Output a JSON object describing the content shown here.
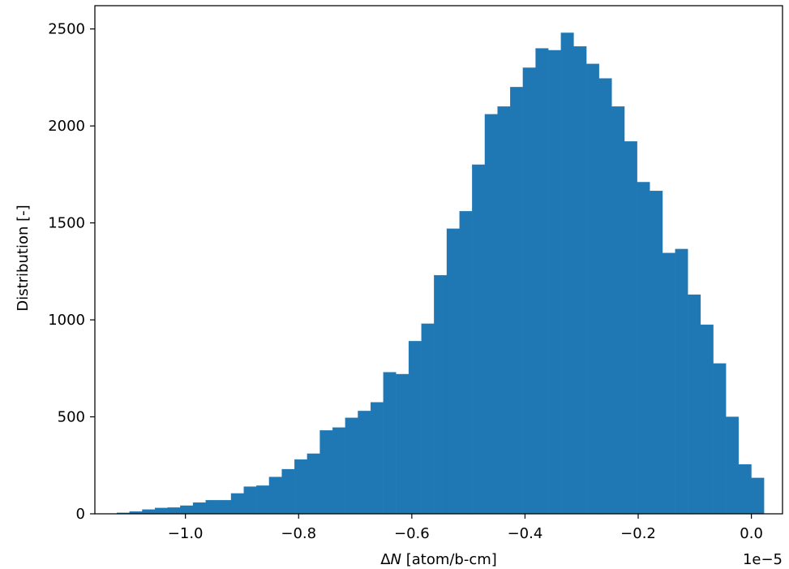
{
  "chart_data": {
    "type": "bar",
    "histogram": true,
    "title": "",
    "xlabel_prefix": "Δ",
    "xlabel_var": "N",
    "xlabel_suffix": " [atom/b-cm]",
    "ylabel": "Distribution [-]",
    "x_offset_label": "1e−5",
    "x_scale": "1e-5",
    "xlim": [
      -1.16,
      0.055
    ],
    "ylim": [
      0,
      2620
    ],
    "grid": false,
    "legend": "none",
    "bar_color": "#1f77b4",
    "bin_start": -1.1211,
    "bin_width": 0.02242,
    "values": [
      5,
      12,
      22,
      30,
      32,
      42,
      58,
      70,
      70,
      105,
      140,
      145,
      190,
      230,
      280,
      310,
      430,
      445,
      495,
      530,
      575,
      730,
      720,
      890,
      980,
      1230,
      1470,
      1560,
      1800,
      2060,
      2100,
      2200,
      2300,
      2400,
      2390,
      2480,
      2410,
      2320,
      2245,
      2100,
      1920,
      1710,
      1665,
      1345,
      1365,
      1130,
      975,
      775,
      500,
      255,
      185
    ],
    "xticks": [
      {
        "value": -1.0,
        "label": "−1.0"
      },
      {
        "value": -0.8,
        "label": "−0.8"
      },
      {
        "value": -0.6,
        "label": "−0.6"
      },
      {
        "value": -0.4,
        "label": "−0.4"
      },
      {
        "value": -0.2,
        "label": "−0.2"
      },
      {
        "value": 0.0,
        "label": "0.0"
      }
    ],
    "yticks": [
      {
        "value": 0,
        "label": "0"
      },
      {
        "value": 500,
        "label": "500"
      },
      {
        "value": 1000,
        "label": "1000"
      },
      {
        "value": 1500,
        "label": "1500"
      },
      {
        "value": 2000,
        "label": "2000"
      },
      {
        "value": 2500,
        "label": "2500"
      }
    ]
  }
}
